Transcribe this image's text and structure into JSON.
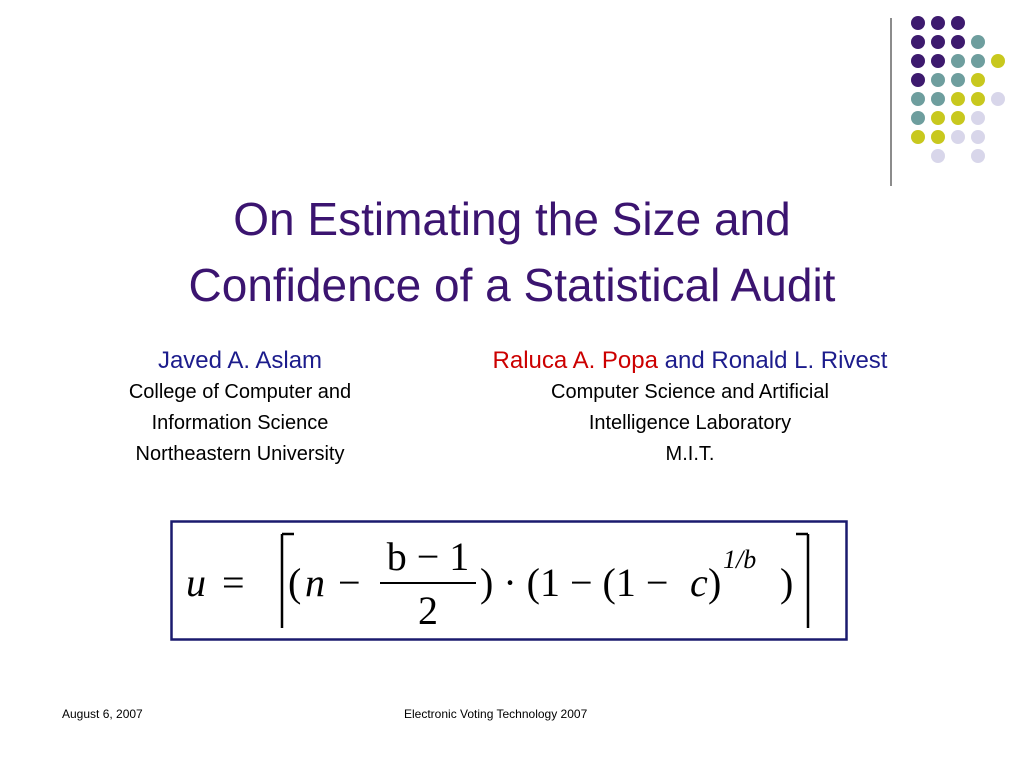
{
  "title": {
    "line1": "On Estimating the Size and",
    "line2": "Confidence of a Statistical Audit"
  },
  "authors": {
    "left": {
      "name": "Javed A. Aslam",
      "affiliation": [
        "College of Computer and",
        "Information Science",
        "Northeastern University"
      ]
    },
    "right": {
      "name1": "Raluca A. Popa",
      "joiner": "and Ronald L. Rivest",
      "affiliation": [
        "Computer Science and Artificial",
        "Intelligence Laboratory",
        "M.I.T."
      ]
    }
  },
  "formula": {
    "lhs": "u",
    "equals": "=",
    "open": "(",
    "n": "n",
    "minus": "−",
    "numerator": "b − 1",
    "denominator": "2",
    "middle": ") · (1 − (1 − ",
    "c": "c",
    "close1": ")",
    "exponent": "1/b",
    "close2": ")"
  },
  "footer": {
    "date": "August 6, 2007",
    "event": "Electronic Voting Technology 2007"
  }
}
